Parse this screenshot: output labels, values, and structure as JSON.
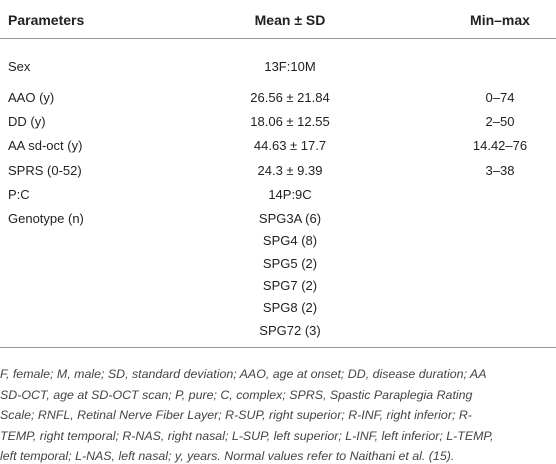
{
  "table": {
    "header": {
      "parameter": "Parameters",
      "mean": "Mean ± SD",
      "range": "Min–max"
    },
    "rows": [
      {
        "parameter": "Sex",
        "mean": [
          "13F:10M"
        ]
      },
      {
        "parameter": "AAO (y)",
        "mean": [
          "26.56 ± 21.84"
        ],
        "range": "0–74"
      },
      {
        "parameter": "DD (y)",
        "mean": [
          "18.06 ± 12.55"
        ],
        "range": "2–50"
      },
      {
        "parameter": "AA sd-oct (y)",
        "mean": [
          "44.63 ± 17.7"
        ],
        "range": "14.42–76"
      },
      {
        "parameter": "SPRS (0-52)",
        "mean": [
          "24.3 ± 9.39"
        ],
        "range": "3–38"
      },
      {
        "parameter": "P:C",
        "mean": [
          "14P:9C"
        ]
      },
      {
        "parameter": "Genotype (n)",
        "mean": [
          "SPG3A (6)",
          "SPG4 (8)",
          "SPG5 (2)",
          "SPG7 (2)",
          "SPG8 (2)",
          "SPG72 (3)"
        ]
      }
    ]
  },
  "footnote": {
    "lines": [
      "F, female; M, male; SD, standard deviation; AAO, age at onset; DD, disease duration; AA",
      "SD-OCT, age at SD-OCT scan; P, pure; C, complex; SPRS, Spastic Paraplegia Rating",
      "Scale; RNFL, Retinal Nerve Fiber Layer; R-SUP, right superior; R-INF, right inferior; R-",
      "TEMP, right temporal; R-NAS, right nasal; L-SUP, left superior; L-INF, left inferior; L-TEMP,",
      "left temporal; L-NAS, left nasal; y, years. Normal values refer to Naithani et al. (15)."
    ]
  }
}
